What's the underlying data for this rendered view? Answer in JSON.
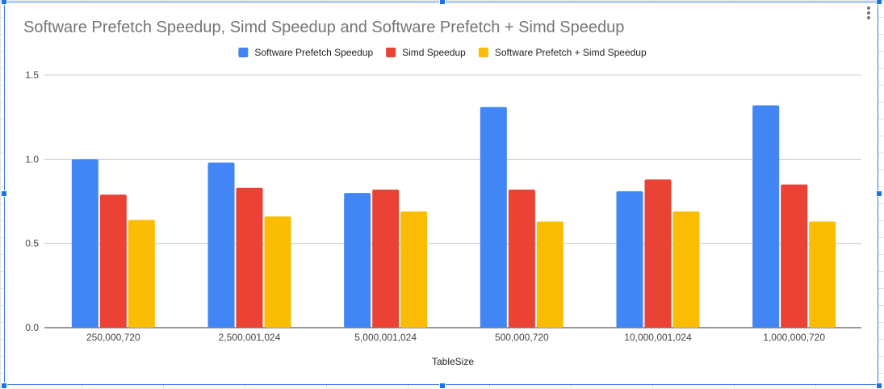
{
  "chart_data": {
    "type": "bar",
    "title": "Software Prefetch Speedup, Simd Speedup and Software Prefetch + Simd Speedup",
    "xlabel": "TableSize",
    "ylabel": "",
    "categories": [
      "250,000,720",
      "2,500,001,024",
      "5,000,001,024",
      "500,000,720",
      "10,000,001,024",
      "1,000,000,720"
    ],
    "ylim": [
      0,
      1.5
    ],
    "yticks": [
      0,
      0.5,
      1,
      1.5
    ],
    "ytick_labels": [
      "0.0",
      "0.5",
      "1.0",
      "1.5"
    ],
    "grid": true,
    "legend_position": "top",
    "series": [
      {
        "name": "Software Prefetch Speedup",
        "color": "#4285f4",
        "values": [
          1.0,
          0.98,
          0.8,
          1.31,
          0.81,
          1.32
        ]
      },
      {
        "name": "Simd Speedup",
        "color": "#ea4335",
        "values": [
          0.79,
          0.83,
          0.82,
          0.82,
          0.88,
          0.85
        ]
      },
      {
        "name": "Software Prefetch + Simd Speedup",
        "color": "#fbbc04",
        "values": [
          0.64,
          0.66,
          0.69,
          0.63,
          0.69,
          0.63
        ]
      }
    ]
  }
}
